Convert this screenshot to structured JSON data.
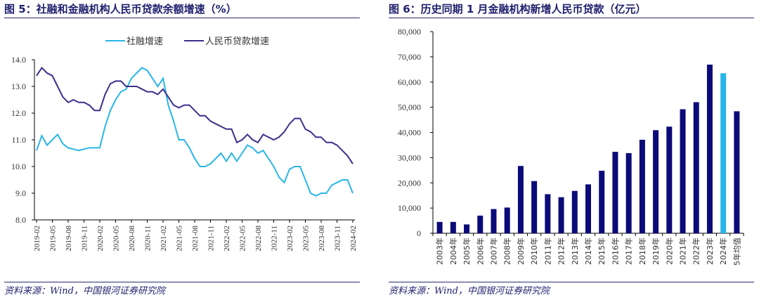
{
  "left": {
    "title": "图 5：社融和金融机构人民币贷款余额增速（%）",
    "source": "资料来源：Wind，中国银河证券研究院"
  },
  "right": {
    "title": "图 6：历史同期 1 月金融机构新增人民币贷款（亿元）",
    "source": "资料来源：Wind，中国银河证券研究院"
  },
  "chart_data": [
    {
      "type": "line",
      "title": "图 5：社融和金融机构人民币贷款余额增速（%）",
      "x_start": "2019-02",
      "x_end": "2024-02",
      "x_frequency": "monthly",
      "x_tick_labels": [
        "2019-02",
        "2019-05",
        "2019-08",
        "2019-11",
        "2020-02",
        "2020-05",
        "2020-08",
        "2020-11",
        "2021-02",
        "2021-05",
        "2021-08",
        "2021-11",
        "2022-02",
        "2022-05",
        "2022-08",
        "2022-11",
        "2023-02",
        "2023-05",
        "2023-08",
        "2023-11",
        "2024-02"
      ],
      "y_ticks": [
        "8.0",
        "9.0",
        "10.0",
        "11.0",
        "12.0",
        "13.0",
        "14.0"
      ],
      "ylim": [
        8.0,
        14.0
      ],
      "grid": false,
      "legend_position": "top",
      "series": [
        {
          "name": "社融增速",
          "color": "#29b6e8",
          "values": [
            10.6,
            11.15,
            10.8,
            11.0,
            11.2,
            10.85,
            10.7,
            10.65,
            10.6,
            10.65,
            10.7,
            10.7,
            10.7,
            11.5,
            12.1,
            12.5,
            12.8,
            12.9,
            13.3,
            13.5,
            13.7,
            13.6,
            13.3,
            13.0,
            13.3,
            12.3,
            11.7,
            11.0,
            11.0,
            10.7,
            10.3,
            10.0,
            10.0,
            10.1,
            10.3,
            10.5,
            10.2,
            10.5,
            10.2,
            10.5,
            10.8,
            10.7,
            10.5,
            10.6,
            10.3,
            10.0,
            9.6,
            9.4,
            9.9,
            10.0,
            10.0,
            9.5,
            9.0,
            8.9,
            9.0,
            9.0,
            9.3,
            9.4,
            9.5,
            9.5,
            9.0
          ]
        },
        {
          "name": "人民币贷款增速",
          "color": "#3d2f8a",
          "values": [
            13.4,
            13.7,
            13.5,
            13.4,
            13.0,
            12.6,
            12.4,
            12.5,
            12.4,
            12.4,
            12.3,
            12.1,
            12.1,
            12.7,
            13.1,
            13.2,
            13.2,
            13.0,
            13.0,
            13.0,
            12.9,
            12.8,
            12.8,
            12.7,
            12.9,
            12.6,
            12.3,
            12.2,
            12.3,
            12.3,
            12.1,
            11.9,
            11.9,
            11.7,
            11.6,
            11.5,
            11.4,
            11.4,
            10.9,
            11.0,
            11.2,
            11.0,
            10.9,
            11.2,
            11.1,
            11.0,
            11.1,
            11.3,
            11.6,
            11.8,
            11.8,
            11.4,
            11.3,
            11.1,
            11.1,
            10.9,
            10.9,
            10.8,
            10.6,
            10.4,
            10.1
          ]
        }
      ]
    },
    {
      "type": "bar",
      "title": "图 6：历史同期 1 月金融机构新增人民币贷款（亿元）",
      "categories": [
        "2003年",
        "2004年",
        "2005年",
        "2006年",
        "2007年",
        "2008年",
        "2009年",
        "2010年",
        "2011年",
        "2012年",
        "2013年",
        "2014年",
        "2015年",
        "2016年",
        "2017年",
        "2018年",
        "2019年",
        "2020年",
        "2021年",
        "2022年",
        "2023年",
        "2024年",
        "5年均值"
      ],
      "values": [
        4500,
        4500,
        3500,
        7000,
        9600,
        10200,
        26700,
        20700,
        15500,
        14300,
        16800,
        19400,
        24800,
        32300,
        31800,
        37100,
        40900,
        42300,
        49200,
        52000,
        66900,
        63500,
        48400
      ],
      "colors": {
        "default": "#0a0a78",
        "highlight": "#29b6e8"
      },
      "highlight_category": "2024年",
      "y_ticks": [
        "0",
        "10,000",
        "20,000",
        "30,000",
        "40,000",
        "50,000",
        "60,000",
        "70,000",
        "80,000"
      ],
      "ylim": [
        0,
        80000
      ],
      "grid": false
    }
  ]
}
